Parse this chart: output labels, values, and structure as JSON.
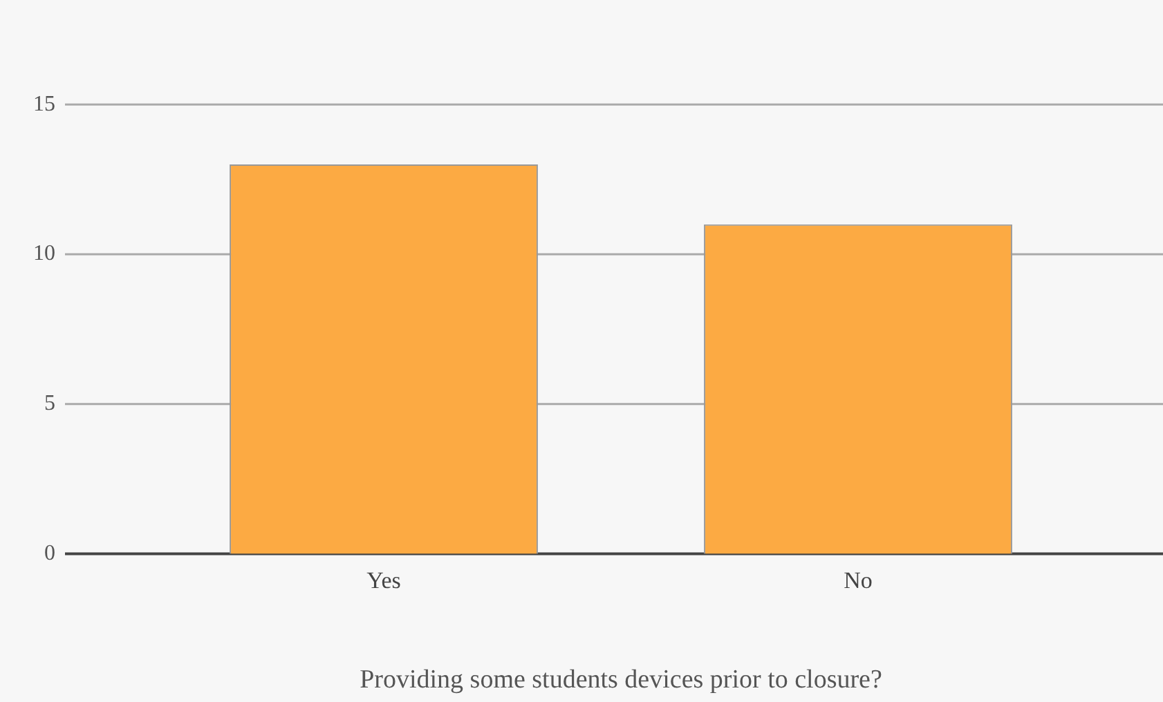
{
  "chart_data": {
    "type": "bar",
    "xlabel": "Providing some students devices prior to closure?",
    "categories": [
      "Yes",
      "No"
    ],
    "values": [
      13,
      11
    ],
    "color": "#fcaa43",
    "ylim": [
      0,
      15
    ],
    "yticks": [
      0,
      5,
      10,
      15
    ],
    "grid": "y",
    "legend": false
  }
}
